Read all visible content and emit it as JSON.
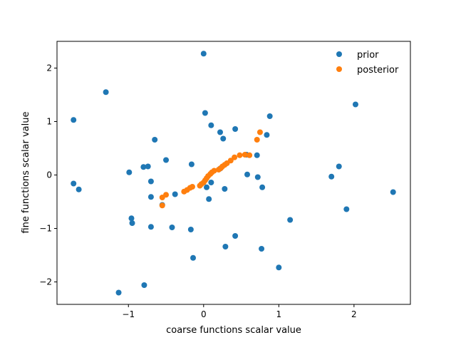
{
  "chart_data": {
    "type": "scatter",
    "xlabel": "coarse functions scalar value",
    "ylabel": "fine functions scalar value",
    "xlim": [
      -1.95,
      2.75
    ],
    "ylim": [
      -2.42,
      2.5
    ],
    "xticks": [
      -1,
      0,
      1,
      2
    ],
    "yticks": [
      -2,
      -1,
      0,
      1,
      2
    ],
    "xtick_labels": [
      "−1",
      "0",
      "1",
      "2"
    ],
    "ytick_labels": [
      "−2",
      "−1",
      "0",
      "1",
      "2"
    ],
    "legend_position": "top-right",
    "series": [
      {
        "name": "prior",
        "color": "#1f77b4",
        "points": [
          [
            0.0,
            2.27
          ],
          [
            -1.3,
            1.55
          ],
          [
            -1.73,
            1.03
          ],
          [
            0.02,
            1.16
          ],
          [
            0.88,
            1.1
          ],
          [
            2.02,
            1.32
          ],
          [
            0.1,
            0.93
          ],
          [
            0.22,
            0.8
          ],
          [
            0.42,
            0.86
          ],
          [
            0.84,
            0.75
          ],
          [
            0.26,
            0.68
          ],
          [
            -0.65,
            0.66
          ],
          [
            -0.5,
            0.28
          ],
          [
            0.57,
            0.38
          ],
          [
            0.71,
            0.37
          ],
          [
            -0.8,
            0.15
          ],
          [
            -0.74,
            0.16
          ],
          [
            -0.16,
            0.2
          ],
          [
            0.22,
            0.12
          ],
          [
            -0.99,
            0.05
          ],
          [
            -1.73,
            -0.16
          ],
          [
            -1.66,
            -0.27
          ],
          [
            -0.7,
            -0.12
          ],
          [
            0.58,
            0.01
          ],
          [
            0.72,
            -0.04
          ],
          [
            0.04,
            -0.23
          ],
          [
            0.1,
            -0.14
          ],
          [
            0.28,
            -0.26
          ],
          [
            0.78,
            -0.23
          ],
          [
            1.7,
            -0.03
          ],
          [
            1.8,
            0.16
          ],
          [
            2.52,
            -0.32
          ],
          [
            -0.7,
            -0.41
          ],
          [
            -0.38,
            -0.36
          ],
          [
            0.07,
            -0.45
          ],
          [
            -0.55,
            -0.56
          ],
          [
            -0.96,
            -0.81
          ],
          [
            -0.95,
            -0.9
          ],
          [
            -0.7,
            -0.97
          ],
          [
            -0.42,
            -0.98
          ],
          [
            -0.17,
            -1.02
          ],
          [
            0.42,
            -1.14
          ],
          [
            1.15,
            -0.84
          ],
          [
            1.9,
            -0.64
          ],
          [
            0.29,
            -1.34
          ],
          [
            -0.14,
            -1.55
          ],
          [
            0.77,
            -1.38
          ],
          [
            1.0,
            -1.73
          ],
          [
            -1.13,
            -2.2
          ],
          [
            -0.79,
            -2.06
          ]
        ]
      },
      {
        "name": "posterior",
        "color": "#ff7f0e",
        "points": [
          [
            -0.55,
            -0.57
          ],
          [
            -0.55,
            -0.42
          ],
          [
            -0.5,
            -0.37
          ],
          [
            -0.26,
            -0.31
          ],
          [
            -0.22,
            -0.28
          ],
          [
            -0.18,
            -0.24
          ],
          [
            -0.15,
            -0.22
          ],
          [
            -0.05,
            -0.2
          ],
          [
            -0.03,
            -0.17
          ],
          [
            0.0,
            -0.14
          ],
          [
            0.02,
            -0.1
          ],
          [
            0.04,
            -0.06
          ],
          [
            0.06,
            -0.02
          ],
          [
            0.09,
            0.02
          ],
          [
            0.11,
            0.05
          ],
          [
            0.14,
            0.08
          ],
          [
            0.2,
            0.1
          ],
          [
            0.23,
            0.13
          ],
          [
            0.25,
            0.16
          ],
          [
            0.28,
            0.19
          ],
          [
            0.31,
            0.22
          ],
          [
            0.36,
            0.27
          ],
          [
            0.41,
            0.33
          ],
          [
            0.48,
            0.37
          ],
          [
            0.55,
            0.38
          ],
          [
            0.61,
            0.37
          ],
          [
            0.71,
            0.66
          ],
          [
            0.75,
            0.8
          ]
        ]
      }
    ]
  }
}
